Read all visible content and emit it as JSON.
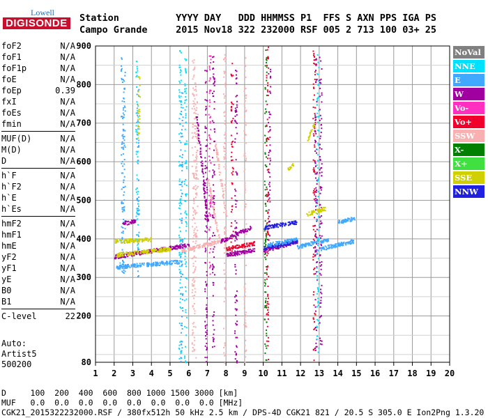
{
  "logo": {
    "line1": "Lowell",
    "line2": "DIGISONDE"
  },
  "header": {
    "labels": "Station          YYYY DAY   DDD HHMMSS P1  FFS S AXN PPS IGA PS",
    "values": "Campo Grande     2015 Nov18 322 232000 RSF 005 2 713 100 03+ 25"
  },
  "params": {
    "group1": [
      {
        "label": "foF2",
        "value": "N/A"
      },
      {
        "label": "foF1",
        "value": "N/A"
      },
      {
        "label": "foF1p",
        "value": "N/A"
      },
      {
        "label": "foE",
        "value": "N/A"
      },
      {
        "label": "foEp",
        "value": "0.39"
      },
      {
        "label": "fxI",
        "value": "N/A"
      },
      {
        "label": "foEs",
        "value": "N/A"
      },
      {
        "label": "fmin",
        "value": "N/A"
      }
    ],
    "group2": [
      {
        "label": "MUF(D)",
        "value": "N/A"
      },
      {
        "label": "M(D)",
        "value": "N/A"
      },
      {
        "label": "D",
        "value": "N/A"
      }
    ],
    "group3": [
      {
        "label": "h`F",
        "value": "N/A"
      },
      {
        "label": "h`F2",
        "value": "N/A"
      },
      {
        "label": "h`E",
        "value": "N/A"
      },
      {
        "label": "h`Es",
        "value": "N/A"
      }
    ],
    "group4": [
      {
        "label": "hmF2",
        "value": "N/A"
      },
      {
        "label": "hmF1",
        "value": "N/A"
      },
      {
        "label": "hmE",
        "value": "N/A"
      },
      {
        "label": "yF2",
        "value": "N/A"
      },
      {
        "label": "yF1",
        "value": "N/A"
      },
      {
        "label": "yE",
        "value": "N/A"
      },
      {
        "label": "B0",
        "value": "N/A"
      },
      {
        "label": "B1",
        "value": "N/A"
      }
    ],
    "group5": [
      {
        "label": "C-level",
        "value": "22"
      }
    ]
  },
  "auto": {
    "line1": "Auto:",
    "line2": "Artist5",
    "line3": "500200"
  },
  "legend": [
    {
      "label": "NoVal",
      "color": "#808080"
    },
    {
      "label": "NNE",
      "color": "#00e0ff"
    },
    {
      "label": "E",
      "color": "#40a8ff"
    },
    {
      "label": "W",
      "color": "#a000a0"
    },
    {
      "label": "Vo-",
      "color": "#ff30c0"
    },
    {
      "label": "Vo+",
      "color": "#f0002a"
    },
    {
      "label": "SSW",
      "color": "#f8b0b0"
    },
    {
      "label": "X-",
      "color": "#008000"
    },
    {
      "label": "X+",
      "color": "#40e040"
    },
    {
      "label": "SSE",
      "color": "#d0d000"
    },
    {
      "label": "NNW",
      "color": "#2020e0"
    }
  ],
  "footer": {
    "line1": "D     100  200  400  600  800 1000 1500 3000 [km]",
    "line2": "MUF   0.0  0.0  0.0  0.0  0.0  0.0  0.0  0.0 [MHz]",
    "line3": "CGK21_2015322232000.RSF / 380fx512h 50 kHz 2.5 km / DPS-4D CGK21 821 / 20.5 S 305.0 E Ion2Png 1.3.20"
  },
  "chart_data": {
    "type": "scatter",
    "xlim": [
      1,
      20
    ],
    "ylim": [
      80,
      900
    ],
    "x_ticks": [
      1,
      2,
      3,
      4,
      5,
      6,
      7,
      8,
      9,
      10,
      11,
      12,
      13,
      14,
      15,
      16,
      17,
      18,
      19,
      20
    ],
    "y_ticks": [
      80,
      200,
      300,
      400,
      500,
      600,
      700,
      800,
      900
    ],
    "grid": true,
    "vertical_traces": [
      {
        "x": 2.4,
        "y0": 300,
        "y1": 880,
        "color": "E"
      },
      {
        "x": 2.5,
        "y0": 300,
        "y1": 870,
        "color": "E"
      },
      {
        "x": 2.3,
        "y0": 320,
        "y1": 400,
        "color": "NNE"
      },
      {
        "x": 3.2,
        "y0": 340,
        "y1": 870,
        "color": "NNE"
      },
      {
        "x": 3.25,
        "y0": 300,
        "y1": 800,
        "color": "E"
      },
      {
        "x": 3.3,
        "y0": 640,
        "y1": 850,
        "color": "SSE"
      },
      {
        "x": 5.5,
        "y0": 90,
        "y1": 890,
        "color": "NNE"
      },
      {
        "x": 5.6,
        "y0": 80,
        "y1": 780,
        "color": "E"
      },
      {
        "x": 5.8,
        "y0": 80,
        "y1": 890,
        "color": "NNE"
      },
      {
        "x": 6.2,
        "y0": 100,
        "y1": 880,
        "color": "SSW"
      },
      {
        "x": 6.3,
        "y0": 80,
        "y1": 850,
        "color": "SSW"
      },
      {
        "x": 6.4,
        "y0": 380,
        "y1": 800,
        "color": "SSW"
      },
      {
        "x": 6.9,
        "y0": 80,
        "y1": 890,
        "color": "W"
      },
      {
        "x": 7.1,
        "y0": 300,
        "y1": 890,
        "color": "Vo-"
      },
      {
        "x": 7.3,
        "y0": 110,
        "y1": 890,
        "color": "W"
      },
      {
        "x": 7.9,
        "y0": 80,
        "y1": 880,
        "color": "SSW"
      },
      {
        "x": 8.3,
        "y0": 360,
        "y1": 860,
        "color": "Vo+"
      },
      {
        "x": 8.5,
        "y0": 80,
        "y1": 860,
        "color": "W"
      },
      {
        "x": 9.0,
        "y0": 80,
        "y1": 880,
        "color": "SSW"
      },
      {
        "x": 10.1,
        "y0": 80,
        "y1": 900,
        "color": "X-"
      },
      {
        "x": 10.2,
        "y0": 80,
        "y1": 900,
        "color": "Vo+"
      },
      {
        "x": 10.3,
        "y0": 340,
        "y1": 850,
        "color": "W"
      },
      {
        "x": 12.7,
        "y0": 80,
        "y1": 890,
        "color": "Vo+"
      },
      {
        "x": 12.8,
        "y0": 100,
        "y1": 880,
        "color": "W"
      },
      {
        "x": 12.9,
        "y0": 100,
        "y1": 880,
        "color": "NNE"
      },
      {
        "x": 13.05,
        "y0": 90,
        "y1": 880,
        "color": "W"
      }
    ],
    "horizontal_traces": [
      {
        "x0": 2.0,
        "x1": 6.0,
        "y0": 355,
        "y1": 385,
        "color": "W"
      },
      {
        "x0": 2.1,
        "x1": 5.5,
        "y0": 328,
        "y1": 342,
        "color": "E"
      },
      {
        "x0": 2.1,
        "x1": 5.0,
        "y0": 360,
        "y1": 375,
        "color": "SSE"
      },
      {
        "x0": 2.4,
        "x1": 3.1,
        "y0": 440,
        "y1": 448,
        "color": "W"
      },
      {
        "x0": 5.6,
        "x1": 8.0,
        "y0": 370,
        "y1": 400,
        "color": "SSW"
      },
      {
        "x0": 7.7,
        "x1": 9.3,
        "y0": 395,
        "y1": 430,
        "color": "W"
      },
      {
        "x0": 8.0,
        "x1": 9.5,
        "y0": 375,
        "y1": 390,
        "color": "Vo+"
      },
      {
        "x0": 8.0,
        "x1": 9.5,
        "y0": 360,
        "y1": 372,
        "color": "W"
      },
      {
        "x0": 10.0,
        "x1": 11.8,
        "y0": 370,
        "y1": 395,
        "color": "W"
      },
      {
        "x0": 10.0,
        "x1": 11.8,
        "y0": 378,
        "y1": 395,
        "color": "NNW"
      },
      {
        "x0": 10.0,
        "x1": 11.8,
        "y0": 430,
        "y1": 445,
        "color": "NNW"
      },
      {
        "x0": 10.2,
        "x1": 11.8,
        "y0": 385,
        "y1": 400,
        "color": "E"
      },
      {
        "x0": 11.8,
        "x1": 13.5,
        "y0": 380,
        "y1": 400,
        "color": "E"
      },
      {
        "x0": 13.0,
        "x1": 14.8,
        "y0": 375,
        "y1": 395,
        "color": "E"
      },
      {
        "x0": 14.0,
        "x1": 14.9,
        "y0": 445,
        "y1": 455,
        "color": "E"
      },
      {
        "x0": 12.3,
        "x1": 13.3,
        "y0": 465,
        "y1": 480,
        "color": "SSE"
      },
      {
        "x0": 12.3,
        "x1": 12.7,
        "y0": 650,
        "y1": 700,
        "color": "SSE"
      },
      {
        "x0": 11.3,
        "x1": 11.6,
        "y0": 580,
        "y1": 595,
        "color": "SSE"
      },
      {
        "x0": 2.0,
        "x1": 4.0,
        "y0": 395,
        "y1": 400,
        "color": "SSE"
      }
    ],
    "diagonal_traces": [
      {
        "x0": 6.4,
        "x1": 7.0,
        "y0": 720,
        "y1": 440,
        "color": "W"
      },
      {
        "x0": 7.0,
        "x1": 7.6,
        "y0": 560,
        "y1": 400,
        "color": "SSW"
      },
      {
        "x0": 7.4,
        "x1": 8.0,
        "y0": 650,
        "y1": 460,
        "color": "SSW"
      }
    ]
  }
}
